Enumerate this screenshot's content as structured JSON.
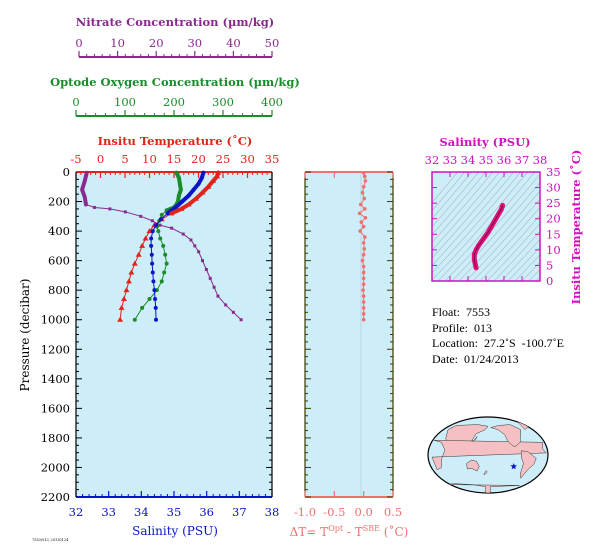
{
  "colors": {
    "nitrate": "#8a2a8e",
    "oxygen": "#1a8c2a",
    "temperature": "#e2231a",
    "salinity": "#0a14c8",
    "delta_t": "#f07070",
    "ts_axis": "#d010c0",
    "ts_curve": "#e0107a",
    "panel_bg": "#cdeef8"
  },
  "axes": {
    "nitrate_title": "Nitrate Concentration (µm/kg)",
    "oxygen_title": "Optode Oxygen Concentration (µm/kg)",
    "temperature_title": "Insitu Temperature (˚C)",
    "salinity_title": "Salinity (PSU)",
    "pressure_title": "Pressure (decibar)",
    "delta_t_title_prefix": "ΔT= T",
    "delta_t_sup1": "Opt",
    "delta_t_mid": " - T",
    "delta_t_sup2": "SBE",
    "delta_t_suffix": " (˚C)",
    "ts_top_title": "Salinity (PSU)",
    "ts_right_title": "Insitu Temperature (˚C)"
  },
  "info": {
    "float": "Float:  7553",
    "profile": "Profile:  013",
    "location": "Location:  27.2˚S  -100.7˚E",
    "date": "Date:  01/24/2013"
  },
  "chart_data": [
    {
      "type": "line",
      "name": "Nitrate profile",
      "x_range": [
        0,
        50
      ],
      "y_range": [
        2200,
        0
      ],
      "x_ticks": [
        "0",
        "10",
        "20",
        "30",
        "40",
        "50"
      ],
      "points": [
        [
          2,
          5
        ],
        [
          1.5,
          60
        ],
        [
          0.8,
          120
        ],
        [
          1.5,
          170
        ],
        [
          1.8,
          220
        ],
        [
          4,
          240
        ],
        [
          8,
          250
        ],
        [
          12,
          270
        ],
        [
          16,
          300
        ],
        [
          19,
          330
        ],
        [
          21,
          360
        ],
        [
          24,
          380
        ],
        [
          27,
          420
        ],
        [
          29,
          460
        ],
        [
          30,
          500
        ],
        [
          31,
          540
        ],
        [
          32,
          600
        ],
        [
          33,
          660
        ],
        [
          34,
          720
        ],
        [
          35,
          780
        ],
        [
          36,
          840
        ],
        [
          38,
          900
        ],
        [
          40,
          950
        ],
        [
          42,
          1000
        ]
      ]
    },
    {
      "type": "line",
      "name": "Oxygen profile",
      "x_range": [
        0,
        400
      ],
      "y_range": [
        2200,
        0
      ],
      "x_ticks": [
        "0",
        "100",
        "200",
        "300",
        "400"
      ],
      "points": [
        [
          205,
          5
        ],
        [
          210,
          40
        ],
        [
          212,
          80
        ],
        [
          214,
          120
        ],
        [
          210,
          160
        ],
        [
          208,
          200
        ],
        [
          205,
          220
        ],
        [
          200,
          240
        ],
        [
          185,
          260
        ],
        [
          175,
          290
        ],
        [
          170,
          330
        ],
        [
          165,
          370
        ],
        [
          168,
          400
        ],
        [
          172,
          450
        ],
        [
          178,
          500
        ],
        [
          182,
          560
        ],
        [
          185,
          620
        ],
        [
          180,
          680
        ],
        [
          175,
          740
        ],
        [
          165,
          800
        ],
        [
          150,
          860
        ],
        [
          135,
          920
        ],
        [
          120,
          1000
        ]
      ]
    },
    {
      "type": "line",
      "name": "Temperature profile",
      "x_range": [
        -5,
        35
      ],
      "y_range": [
        2200,
        0
      ],
      "x_ticks": [
        "-5",
        "0",
        "5",
        "10",
        "15",
        "20",
        "25",
        "30",
        "35"
      ],
      "points": [
        [
          24,
          5
        ],
        [
          23.8,
          30
        ],
        [
          23,
          60
        ],
        [
          22,
          100
        ],
        [
          20.8,
          140
        ],
        [
          19.5,
          180
        ],
        [
          18,
          220
        ],
        [
          16.5,
          250
        ],
        [
          14.5,
          280
        ],
        [
          12.5,
          320
        ],
        [
          11,
          360
        ],
        [
          10,
          400
        ],
        [
          9.2,
          450
        ],
        [
          8.5,
          500
        ],
        [
          7.8,
          560
        ],
        [
          7,
          620
        ],
        [
          6.3,
          680
        ],
        [
          5.8,
          740
        ],
        [
          5.3,
          800
        ],
        [
          4.8,
          860
        ],
        [
          4.3,
          920
        ],
        [
          4,
          1000
        ]
      ]
    },
    {
      "type": "line",
      "name": "Salinity profile",
      "x_range": [
        32,
        38
      ],
      "y_range": [
        2200,
        0
      ],
      "x_ticks": [
        "32",
        "33",
        "34",
        "35",
        "36",
        "37",
        "38"
      ],
      "points": [
        [
          35.9,
          5
        ],
        [
          35.85,
          40
        ],
        [
          35.75,
          80
        ],
        [
          35.6,
          120
        ],
        [
          35.45,
          160
        ],
        [
          35.25,
          200
        ],
        [
          35.05,
          240
        ],
        [
          34.8,
          280
        ],
        [
          34.6,
          320
        ],
        [
          34.45,
          360
        ],
        [
          34.35,
          400
        ],
        [
          34.3,
          450
        ],
        [
          34.3,
          500
        ],
        [
          34.32,
          560
        ],
        [
          34.33,
          620
        ],
        [
          34.35,
          680
        ],
        [
          34.37,
          740
        ],
        [
          34.4,
          800
        ],
        [
          34.42,
          860
        ],
        [
          34.44,
          920
        ],
        [
          34.45,
          1000
        ]
      ]
    },
    {
      "type": "scatter",
      "name": "Delta T profile",
      "x_range": [
        -1.0,
        0.5
      ],
      "y_range": [
        2200,
        0
      ],
      "x_ticks": [
        "-1.0",
        "-0.5",
        "0.0",
        "0.5"
      ],
      "points": [
        [
          0.0,
          5
        ],
        [
          0.02,
          30
        ],
        [
          0.03,
          60
        ],
        [
          0.0,
          100
        ],
        [
          -0.02,
          140
        ],
        [
          0.01,
          180
        ],
        [
          -0.05,
          220
        ],
        [
          0.02,
          250
        ],
        [
          -0.07,
          280
        ],
        [
          0.03,
          310
        ],
        [
          -0.04,
          340
        ],
        [
          0.0,
          370
        ],
        [
          -0.06,
          400
        ],
        [
          0.02,
          440
        ],
        [
          0.0,
          480
        ],
        [
          0.01,
          520
        ],
        [
          0.0,
          560
        ],
        [
          -0.02,
          600
        ],
        [
          0.0,
          640
        ],
        [
          0.0,
          680
        ],
        [
          0.0,
          720
        ],
        [
          0.0,
          760
        ],
        [
          -0.01,
          800
        ],
        [
          0.0,
          840
        ],
        [
          0.0,
          880
        ],
        [
          0.0,
          920
        ],
        [
          0.0,
          960
        ],
        [
          0.0,
          1000
        ]
      ]
    },
    {
      "type": "line",
      "name": "T-S diagram",
      "x_range": [
        32,
        38
      ],
      "y_range": [
        0,
        35
      ],
      "x_ticks": [
        "32",
        "33",
        "34",
        "35",
        "36",
        "37",
        "38"
      ],
      "y_ticks": [
        "0",
        "5",
        "10",
        "15",
        "20",
        "25",
        "30",
        "35"
      ],
      "points": [
        [
          34.45,
          4.2
        ],
        [
          34.4,
          5.5
        ],
        [
          34.35,
          7
        ],
        [
          34.35,
          8.5
        ],
        [
          34.45,
          10
        ],
        [
          34.6,
          11.5
        ],
        [
          34.85,
          13.5
        ],
        [
          35.1,
          15.5
        ],
        [
          35.3,
          17.5
        ],
        [
          35.5,
          19.5
        ],
        [
          35.7,
          21.5
        ],
        [
          35.85,
          23
        ],
        [
          35.92,
          24.3
        ]
      ]
    }
  ],
  "map": {
    "marker_lon": -100.7,
    "marker_lat": -27.2
  },
  "footer_tag": "7553/013_20130124"
}
